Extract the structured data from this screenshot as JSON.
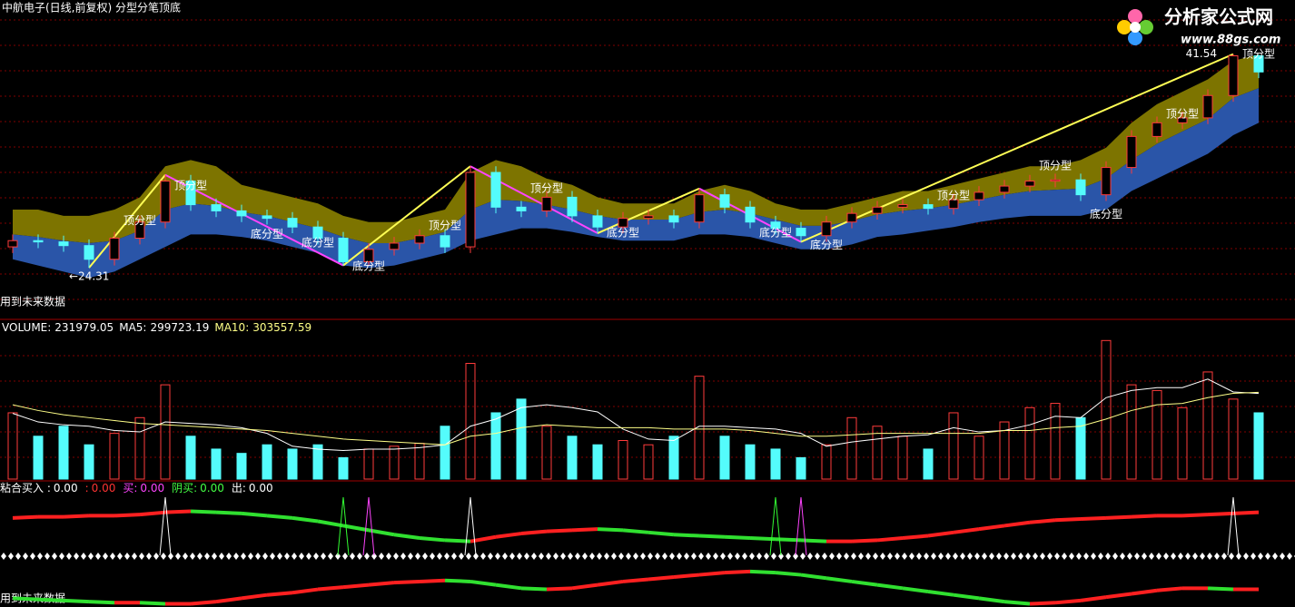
{
  "chart_data": [
    {
      "type": "candlestick",
      "title": "中航电子(日线,前复权) 分型分笔顶底",
      "future_note": "用到未来数据",
      "up_color": "#ff3b3b",
      "down_color": "#54fcfc",
      "ylim": [
        20.3,
        45.9
      ],
      "open": [
        26.0,
        26.5,
        26.4,
        26.1,
        25.0,
        26.7,
        28.0,
        31.3,
        29.4,
        28.9,
        28.5,
        28.3,
        27.6,
        26.7,
        24.8,
        25.8,
        26.3,
        26.9,
        26.0,
        32.0,
        29.2,
        28.9,
        30.0,
        28.5,
        27.6,
        28.3,
        28.5,
        28.0,
        30.2,
        29.2,
        28.0,
        27.5,
        26.9,
        28.0,
        28.7,
        29.2,
        29.4,
        29.1,
        29.8,
        30.4,
        30.9,
        31.3,
        31.4,
        30.2,
        32.4,
        34.9,
        36.0,
        36.4,
        38.2,
        41.4
      ],
      "high": [
        27.0,
        27.0,
        26.9,
        26.6,
        27.2,
        28.5,
        31.8,
        31.8,
        29.9,
        29.4,
        29.0,
        28.8,
        28.1,
        27.2,
        26.3,
        26.8,
        27.4,
        27.4,
        32.5,
        32.5,
        29.7,
        30.5,
        30.5,
        29.0,
        28.8,
        29.0,
        29.0,
        30.7,
        30.7,
        29.7,
        28.5,
        28.0,
        28.5,
        29.2,
        29.7,
        29.9,
        29.9,
        30.3,
        30.9,
        31.4,
        31.8,
        31.9,
        31.9,
        32.9,
        35.4,
        36.5,
        36.9,
        38.7,
        41.54,
        41.5
      ],
      "low": [
        25.5,
        25.9,
        25.6,
        24.31,
        24.5,
        26.2,
        27.5,
        28.9,
        28.4,
        28.0,
        27.8,
        27.1,
        26.2,
        24.5,
        24.5,
        25.3,
        25.8,
        25.5,
        25.5,
        28.7,
        28.4,
        28.4,
        28.0,
        27.1,
        27.1,
        27.8,
        27.5,
        27.5,
        28.7,
        27.5,
        27.0,
        26.4,
        26.4,
        27.5,
        28.2,
        28.7,
        28.6,
        28.6,
        29.3,
        29.9,
        30.4,
        30.8,
        29.7,
        29.7,
        31.9,
        34.4,
        35.5,
        35.9,
        37.7,
        39.6
      ],
      "close": [
        26.5,
        26.4,
        26.1,
        25.0,
        26.7,
        28.0,
        31.3,
        29.4,
        28.9,
        28.5,
        28.3,
        27.6,
        26.7,
        24.8,
        25.8,
        26.3,
        26.9,
        26.0,
        32.0,
        29.2,
        28.9,
        30.0,
        28.5,
        27.6,
        28.3,
        28.5,
        28.0,
        30.2,
        29.2,
        28.0,
        27.5,
        26.9,
        28.0,
        28.7,
        29.2,
        29.4,
        29.1,
        29.8,
        30.4,
        30.9,
        31.3,
        31.4,
        30.2,
        32.4,
        34.9,
        36.0,
        36.4,
        38.2,
        41.4,
        40.1
      ],
      "band": {
        "upper_color": "#7d7400",
        "lower_color": "#2a55a8",
        "upper": [
          29,
          29,
          28.5,
          28.5,
          29,
          30,
          32.5,
          33,
          32.5,
          31,
          30.5,
          30,
          29.5,
          28.5,
          28,
          28,
          28.5,
          29,
          32,
          33,
          32.5,
          31.5,
          31,
          30,
          29.5,
          29.5,
          29.5,
          30.5,
          31,
          30.5,
          29.5,
          29,
          29,
          29.5,
          30,
          30.5,
          30.5,
          31,
          31.5,
          32,
          32.5,
          32.5,
          33,
          34,
          36,
          37.5,
          38.5,
          39.5,
          41,
          41.5
        ],
        "middle": [
          27,
          26.8,
          26.5,
          26.3,
          26.5,
          27.3,
          29,
          29.5,
          29.3,
          28.8,
          28.5,
          28,
          27.5,
          26.8,
          26.3,
          26.3,
          26.7,
          27.2,
          29,
          29.8,
          29.7,
          29.4,
          29,
          28.5,
          28.2,
          28.2,
          28.2,
          28.8,
          29,
          28.7,
          28.2,
          27.7,
          27.7,
          28.1,
          28.6,
          28.9,
          29.1,
          29.4,
          29.8,
          30.2,
          30.5,
          30.6,
          30.7,
          31.5,
          33,
          34.3,
          35.3,
          36.3,
          38,
          38.8
        ],
        "lower": [
          25,
          24.5,
          24,
          23.5,
          24,
          25,
          26,
          27,
          27,
          26.8,
          26.5,
          26,
          25.5,
          24.5,
          24.3,
          24.5,
          25,
          25.5,
          26.5,
          27,
          27.5,
          27.5,
          27.2,
          26.8,
          26.5,
          26.5,
          26.5,
          27,
          27,
          26.8,
          26.3,
          25.8,
          25.8,
          26.2,
          26.8,
          27,
          27.3,
          27.6,
          28,
          28.3,
          28.5,
          28.5,
          28.5,
          29,
          30.5,
          31.5,
          32.5,
          33.5,
          35,
          36
        ]
      },
      "zigzag": {
        "up_color": "#ffff55",
        "down_color": "#ff44ff",
        "x": [
          3,
          6,
          13,
          18,
          23,
          27,
          31,
          48
        ],
        "values": [
          24.31,
          31.8,
          24.5,
          32.5,
          27.1,
          30.7,
          26.4,
          41.54
        ]
      },
      "annotations": [
        {
          "text": "顶分型",
          "x": 5,
          "y": 28.1
        },
        {
          "text": "顶分型",
          "x": 7,
          "y": 30.9
        },
        {
          "text": "底分型",
          "x": 10,
          "y": 27.0
        },
        {
          "text": "底分型",
          "x": 12,
          "y": 26.3
        },
        {
          "text": "底分型",
          "x": 14,
          "y": 24.4
        },
        {
          "text": "顶分型",
          "x": 17,
          "y": 27.7
        },
        {
          "text": "顶分型",
          "x": 21,
          "y": 30.7
        },
        {
          "text": "底分型",
          "x": 24,
          "y": 27.1
        },
        {
          "text": "底分型",
          "x": 30,
          "y": 27.1
        },
        {
          "text": "底分型",
          "x": 32,
          "y": 26.1
        },
        {
          "text": "顶分型",
          "x": 37,
          "y": 30.1
        },
        {
          "text": "顶分型",
          "x": 41,
          "y": 32.5
        },
        {
          "text": "底分型",
          "x": 43,
          "y": 28.6
        },
        {
          "text": "顶分型",
          "x": 46,
          "y": 36.7
        },
        {
          "text": "顶分型",
          "x": 49,
          "y": 41.5
        }
      ],
      "price_labels": [
        {
          "value": 41.54,
          "x": 48
        },
        {
          "value": {
            "value": 24.31,
            "label": "←24.31"
          },
          "x": 3
        }
      ]
    },
    {
      "type": "volume",
      "ylim": [
        0,
        540000
      ],
      "series": [
        {
          "name": "VOLUME:",
          "color": "#ffffff",
          "values": [
            232000,
            150000,
            185000,
            120000,
            160000,
            215000,
            330000,
            150000,
            105000,
            90000,
            120000,
            105000,
            120000,
            75000,
            105000,
            115000,
            125000,
            185000,
            405000,
            232000,
            280000,
            185000,
            150000,
            120000,
            135000,
            120000,
            150000,
            360000,
            150000,
            120000,
            105000,
            75000,
            120000,
            215000,
            185000,
            150000,
            105000,
            232000,
            150000,
            200000,
            250000,
            265000,
            215000,
            485000,
            330000,
            310000,
            250000,
            375000,
            280000,
            231979.05
          ]
        },
        {
          "name": "MA5:",
          "color": "#ffffff",
          "values": [
            230000,
            200000,
            190000,
            185000,
            170000,
            165000,
            200000,
            195000,
            190000,
            180000,
            160000,
            115000,
            105000,
            100000,
            105000,
            105000,
            110000,
            120000,
            185000,
            210000,
            250000,
            260000,
            250000,
            235000,
            175000,
            140000,
            135000,
            185000,
            185000,
            180000,
            175000,
            160000,
            115000,
            130000,
            140000,
            150000,
            155000,
            180000,
            165000,
            170000,
            190000,
            220000,
            215000,
            285000,
            310000,
            320000,
            320000,
            350000,
            305000,
            299723.19
          ]
        },
        {
          "name": "MA10:",
          "color": "#ffff88",
          "values": [
            260000,
            240000,
            225000,
            215000,
            205000,
            195000,
            190000,
            185000,
            180000,
            175000,
            170000,
            160000,
            150000,
            140000,
            135000,
            130000,
            125000,
            120000,
            150000,
            160000,
            180000,
            190000,
            185000,
            180000,
            180000,
            180000,
            175000,
            175000,
            175000,
            170000,
            160000,
            150000,
            150000,
            155000,
            160000,
            160000,
            160000,
            160000,
            160000,
            170000,
            170000,
            180000,
            185000,
            210000,
            240000,
            260000,
            265000,
            285000,
            300000,
            303557.59
          ]
        }
      ]
    },
    {
      "type": "indicator",
      "future_note": "用到未来数据",
      "ylim": [
        0,
        100
      ],
      "rise_color": "#ff2020",
      "fall_color": "#30e030",
      "header": [
        {
          "label": "粘合买入  :",
          "value": "0.00",
          "color": "#ffffff"
        },
        {
          "label": ":",
          "value": "0.00",
          "color": "#ff3333"
        },
        {
          "label": "买:",
          "value": "0.00",
          "color": "#ff44ff"
        },
        {
          "label": "阴买:",
          "value": "0.00",
          "color": "#44ff44"
        },
        {
          "label": "出:",
          "value": "0.00",
          "color": "#ffffff"
        }
      ],
      "series": [
        {
          "values": [
            79,
            80,
            80,
            81,
            81,
            82,
            84,
            85,
            84,
            83,
            81,
            79,
            76,
            72,
            68,
            64,
            61,
            59,
            58,
            62,
            65,
            67,
            68,
            69,
            68,
            66,
            64,
            63,
            62,
            61,
            60,
            59,
            58,
            58,
            59,
            61,
            63,
            66,
            69,
            72,
            75,
            77,
            78,
            79,
            80,
            81,
            81,
            82,
            83,
            84
          ]
        },
        {
          "values": [
            7,
            6,
            5,
            4,
            3,
            3,
            2,
            2,
            4,
            7,
            10,
            12,
            15,
            17,
            19,
            21,
            22,
            23,
            22,
            19,
            16,
            15,
            16,
            19,
            22,
            24,
            26,
            28,
            30,
            31,
            30,
            28,
            25,
            22,
            19,
            16,
            13,
            10,
            7,
            4,
            2,
            3,
            5,
            8,
            11,
            14,
            16,
            16,
            15,
            15
          ]
        }
      ],
      "signals": [
        {
          "color": "#ffffff",
          "x": [
            6,
            18,
            48
          ]
        },
        {
          "color": "#33ff33",
          "x": [
            13,
            30
          ]
        },
        {
          "color": "#ff44ff",
          "x": [
            14,
            31
          ]
        }
      ]
    }
  ],
  "logo": {
    "title": "分析家公式网",
    "url": "www.88gs.com"
  }
}
